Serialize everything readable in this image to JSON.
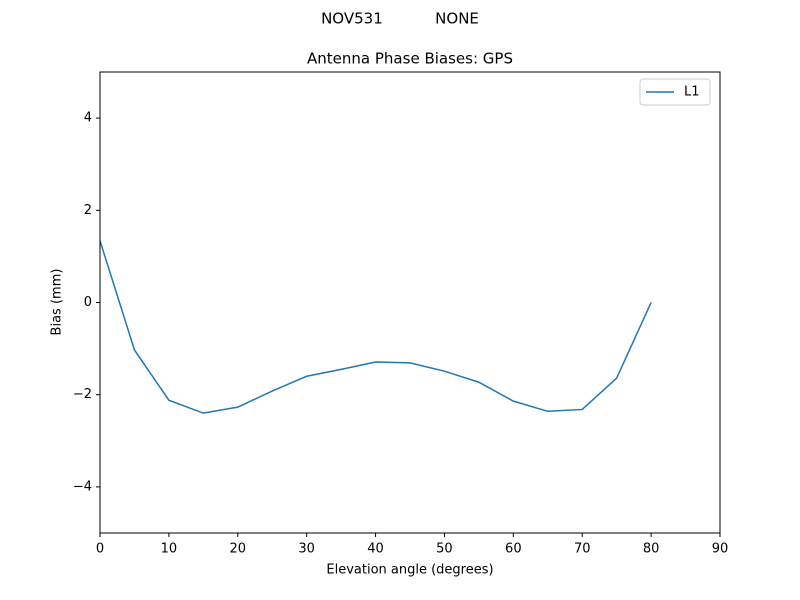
{
  "chart_data": {
    "type": "line",
    "suptitle": "NOV531           NONE",
    "title": "Antenna Phase Biases: GPS",
    "x_label": "Elevation angle (degrees)",
    "y_label": "Bias (mm)",
    "x": [
      0,
      5,
      10,
      15,
      20,
      25,
      30,
      35,
      40,
      45,
      50,
      55,
      60,
      65,
      70,
      75,
      80
    ],
    "series": [
      {
        "name": "L1",
        "color": "#1f77b4",
        "values": [
          1.34,
          -1.03,
          -2.12,
          -2.4,
          -2.27,
          -1.92,
          -1.6,
          -1.45,
          -1.29,
          -1.31,
          -1.49,
          -1.73,
          -2.14,
          -2.36,
          -2.32,
          -1.64,
          0.0
        ]
      }
    ],
    "xlim": [
      0,
      90
    ],
    "ylim": [
      -5,
      5
    ],
    "xticks": [
      0,
      10,
      20,
      30,
      40,
      50,
      60,
      70,
      80,
      90
    ],
    "yticks": [
      {
        "value": -4,
        "label": "−4"
      },
      {
        "value": -2,
        "label": "−2"
      },
      0,
      2,
      4
    ],
    "grid": false,
    "legend": "upper-right"
  }
}
